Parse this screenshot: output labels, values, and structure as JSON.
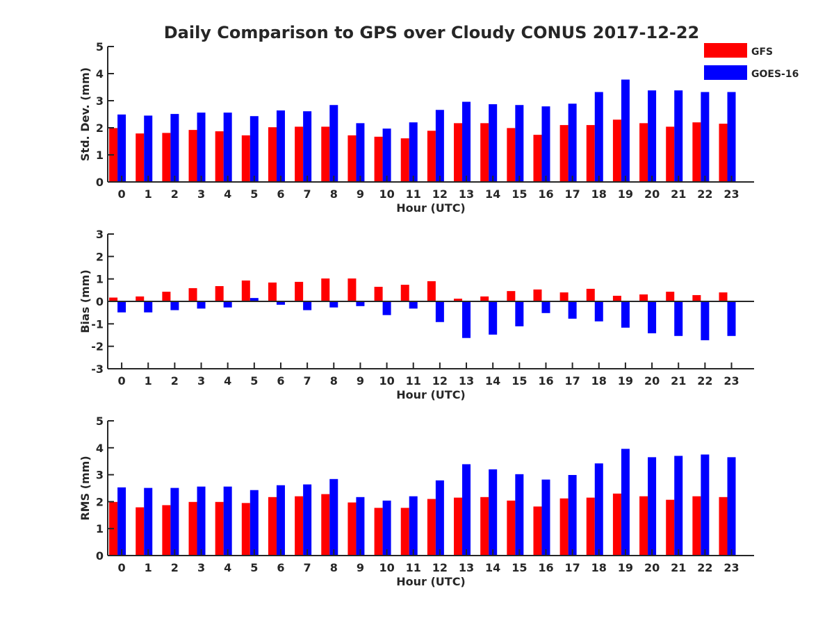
{
  "title": "Daily Comparison to GPS over Cloudy CONUS 2017-12-22",
  "legend": {
    "placement": "top-right",
    "items": [
      {
        "label": "GFS",
        "color": "#ff0000"
      },
      {
        "label": "GOES-16",
        "color": "#0000ff"
      }
    ]
  },
  "chart_data": [
    {
      "type": "bar",
      "title": "Daily Comparison to GPS over Cloudy CONUS 2017-12-22",
      "xlabel": "Hour (UTC)",
      "ylabel": "Std. Dev. (mm)",
      "ylim": [
        0,
        5
      ],
      "yticks": [
        0,
        1,
        2,
        3,
        4,
        5
      ],
      "categories": [
        "0",
        "1",
        "2",
        "3",
        "4",
        "5",
        "6",
        "7",
        "8",
        "9",
        "10",
        "11",
        "12",
        "13",
        "14",
        "15",
        "16",
        "17",
        "18",
        "19",
        "20",
        "21",
        "22",
        "23"
      ],
      "series": [
        {
          "name": "GFS",
          "color": "#ff0000",
          "values": [
            1.99,
            1.79,
            1.81,
            1.92,
            1.87,
            1.72,
            2.02,
            2.04,
            2.04,
            1.72,
            1.67,
            1.61,
            1.89,
            2.17,
            2.17,
            1.99,
            1.74,
            2.1,
            2.1,
            2.3,
            2.17,
            2.04,
            2.2,
            2.15
          ]
        },
        {
          "name": "GOES-16",
          "color": "#0000ff",
          "values": [
            2.49,
            2.45,
            2.51,
            2.56,
            2.56,
            2.43,
            2.64,
            2.61,
            2.84,
            2.17,
            1.97,
            2.2,
            2.66,
            2.96,
            2.87,
            2.84,
            2.79,
            2.89,
            3.32,
            3.78,
            3.38,
            3.38,
            3.32,
            3.32
          ]
        }
      ]
    },
    {
      "type": "bar",
      "xlabel": "Hour (UTC)",
      "ylabel": "Bias (mm)",
      "ylim": [
        -3,
        3
      ],
      "yticks": [
        -3,
        -2,
        -1,
        0,
        1,
        2,
        3
      ],
      "categories": [
        "0",
        "1",
        "2",
        "3",
        "4",
        "5",
        "6",
        "7",
        "8",
        "9",
        "10",
        "11",
        "12",
        "13",
        "14",
        "15",
        "16",
        "17",
        "18",
        "19",
        "20",
        "21",
        "22",
        "23"
      ],
      "series": [
        {
          "name": "GFS",
          "color": "#ff0000",
          "values": [
            0.17,
            0.22,
            0.43,
            0.59,
            0.68,
            0.93,
            0.84,
            0.87,
            1.02,
            1.02,
            0.65,
            0.74,
            0.9,
            0.12,
            0.22,
            0.46,
            0.53,
            0.4,
            0.56,
            0.25,
            0.31,
            0.43,
            0.28,
            0.4
          ]
        },
        {
          "name": "GOES-16",
          "color": "#0000ff",
          "values": [
            -0.49,
            -0.49,
            -0.39,
            -0.32,
            -0.27,
            0.15,
            -0.15,
            -0.39,
            -0.27,
            -0.21,
            -0.61,
            -0.32,
            -0.92,
            -1.63,
            -1.48,
            -1.11,
            -0.52,
            -0.77,
            -0.89,
            -1.17,
            -1.42,
            -1.54,
            -1.73,
            -1.54
          ]
        }
      ]
    },
    {
      "type": "bar",
      "xlabel": "Hour (UTC)",
      "ylabel": "RMS (mm)",
      "ylim": [
        0,
        5
      ],
      "yticks": [
        0,
        1,
        2,
        3,
        4,
        5
      ],
      "categories": [
        "0",
        "1",
        "2",
        "3",
        "4",
        "5",
        "6",
        "7",
        "8",
        "9",
        "10",
        "11",
        "12",
        "13",
        "14",
        "15",
        "16",
        "17",
        "18",
        "19",
        "20",
        "21",
        "22",
        "23"
      ],
      "series": [
        {
          "name": "GFS",
          "color": "#ff0000",
          "values": [
            1.99,
            1.79,
            1.87,
            1.99,
            1.99,
            1.95,
            2.17,
            2.2,
            2.28,
            1.97,
            1.77,
            1.77,
            2.1,
            2.15,
            2.17,
            2.04,
            1.82,
            2.12,
            2.15,
            2.3,
            2.2,
            2.07,
            2.2,
            2.17
          ]
        },
        {
          "name": "GOES-16",
          "color": "#0000ff",
          "values": [
            2.53,
            2.51,
            2.51,
            2.56,
            2.56,
            2.43,
            2.61,
            2.64,
            2.84,
            2.17,
            2.04,
            2.2,
            2.79,
            3.39,
            3.2,
            3.02,
            2.82,
            2.99,
            3.42,
            3.96,
            3.65,
            3.7,
            3.75,
            3.65
          ]
        }
      ]
    }
  ]
}
